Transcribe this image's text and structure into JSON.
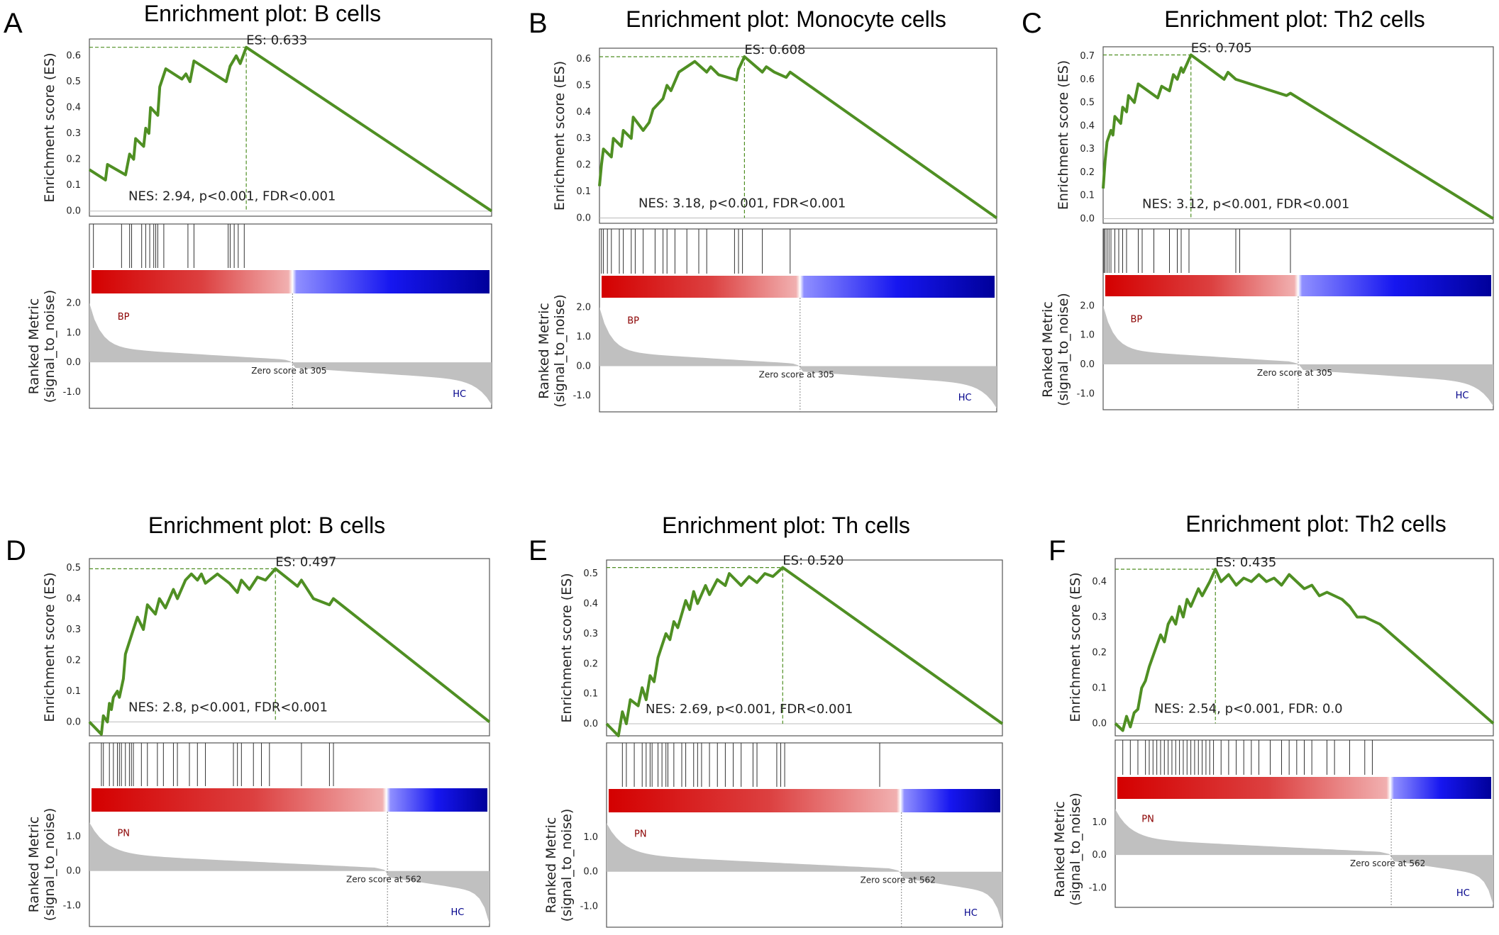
{
  "colors": {
    "es_line": "#4f8f23",
    "metric_fill": "#c0c0c0",
    "frame": "#555555",
    "hit": "#333333",
    "red": "#d40000",
    "blue": "#0000cc"
  },
  "chart_data": [
    {
      "panel": "A",
      "type": "line",
      "title": "Enrichment plot: B cells",
      "ylabel_es": "Enrichment score (ES)",
      "ylabel_rank": [
        "Ranked Metric",
        "(signal_to_noise)"
      ],
      "es_ticks": [
        0.0,
        0.1,
        0.2,
        0.3,
        0.4,
        0.5,
        0.6
      ],
      "es_ylim": [
        -0.02,
        0.665
      ],
      "rank_ticks": [
        2.0,
        1.0,
        0.0,
        -1.0
      ],
      "rank_ylim": [
        -1.55,
        2.25
      ],
      "es_value": 0.633,
      "es_label": "ES: 0.633",
      "peak_frac": 0.39,
      "nes_label": "NES: 2.94, p<0.001, FDR<0.001",
      "zero_frac": 0.505,
      "zero_label": "Zero score at 305",
      "pos_label": "BP",
      "neg_label": "HC",
      "rank_top": 2.0,
      "rank_bottom": -1.5,
      "es_curve": [
        [
          0,
          0.16
        ],
        [
          0.04,
          0.12
        ],
        [
          0.045,
          0.18
        ],
        [
          0.09,
          0.14
        ],
        [
          0.1,
          0.22
        ],
        [
          0.11,
          0.2
        ],
        [
          0.115,
          0.28
        ],
        [
          0.135,
          0.25
        ],
        [
          0.14,
          0.32
        ],
        [
          0.148,
          0.3
        ],
        [
          0.152,
          0.4
        ],
        [
          0.17,
          0.37
        ],
        [
          0.175,
          0.48
        ],
        [
          0.19,
          0.55
        ],
        [
          0.23,
          0.51
        ],
        [
          0.24,
          0.53
        ],
        [
          0.25,
          0.5
        ],
        [
          0.26,
          0.58
        ],
        [
          0.34,
          0.5
        ],
        [
          0.35,
          0.56
        ],
        [
          0.365,
          0.6
        ],
        [
          0.375,
          0.57
        ],
        [
          0.39,
          0.633
        ],
        [
          1,
          0.0
        ]
      ],
      "hits": [
        0.01,
        0.08,
        0.1,
        0.105,
        0.13,
        0.14,
        0.15,
        0.16,
        0.165,
        0.17,
        0.185,
        0.245,
        0.26,
        0.345,
        0.35,
        0.36,
        0.37,
        0.385
      ]
    },
    {
      "panel": "B",
      "type": "line",
      "title": "Enrichment plot: Monocyte cells",
      "ylabel_es": "Enrichment score (ES)",
      "ylabel_rank": [
        "Ranked Metric",
        "(signal_to_noise)"
      ],
      "es_ticks": [
        0.0,
        0.1,
        0.2,
        0.3,
        0.4,
        0.5,
        0.6
      ],
      "es_ylim": [
        -0.02,
        0.64
      ],
      "rank_ticks": [
        2.0,
        1.0,
        0.0,
        -1.0
      ],
      "rank_ylim": [
        -1.55,
        2.25
      ],
      "es_value": 0.608,
      "es_label": "ES: 0.608",
      "peak_frac": 0.365,
      "nes_label": "NES: 3.18, p<0.001, FDR<0.001",
      "zero_frac": 0.505,
      "zero_label": "Zero score at 305",
      "pos_label": "BP",
      "neg_label": "HC",
      "rank_top": 2.0,
      "rank_bottom": -1.5,
      "es_curve": [
        [
          0,
          0.12
        ],
        [
          0.005,
          0.2
        ],
        [
          0.01,
          0.26
        ],
        [
          0.03,
          0.23
        ],
        [
          0.035,
          0.3
        ],
        [
          0.055,
          0.27
        ],
        [
          0.06,
          0.33
        ],
        [
          0.08,
          0.3
        ],
        [
          0.085,
          0.38
        ],
        [
          0.11,
          0.33
        ],
        [
          0.125,
          0.36
        ],
        [
          0.135,
          0.41
        ],
        [
          0.16,
          0.45
        ],
        [
          0.17,
          0.5
        ],
        [
          0.18,
          0.48
        ],
        [
          0.2,
          0.55
        ],
        [
          0.24,
          0.59
        ],
        [
          0.27,
          0.55
        ],
        [
          0.28,
          0.57
        ],
        [
          0.3,
          0.54
        ],
        [
          0.345,
          0.52
        ],
        [
          0.35,
          0.56
        ],
        [
          0.365,
          0.608
        ],
        [
          0.41,
          0.55
        ],
        [
          0.42,
          0.57
        ],
        [
          0.44,
          0.55
        ],
        [
          0.47,
          0.53
        ],
        [
          0.48,
          0.55
        ],
        [
          1,
          0.0
        ]
      ],
      "hits": [
        0.005,
        0.01,
        0.02,
        0.03,
        0.05,
        0.06,
        0.08,
        0.09,
        0.11,
        0.14,
        0.16,
        0.17,
        0.19,
        0.22,
        0.25,
        0.27,
        0.34,
        0.35,
        0.36,
        0.41,
        0.48
      ]
    },
    {
      "panel": "C",
      "type": "line",
      "title": "Enrichment plot: Th2 cells",
      "ylabel_es": "Enrichment score (ES)",
      "ylabel_rank": [
        "Ranked Metric",
        "(signal_to_noise)"
      ],
      "es_ticks": [
        0.0,
        0.1,
        0.2,
        0.3,
        0.4,
        0.5,
        0.6,
        0.7
      ],
      "es_ylim": [
        -0.02,
        0.74
      ],
      "rank_ticks": [
        2.0,
        1.0,
        0.0,
        -1.0
      ],
      "rank_ylim": [
        -1.55,
        2.25
      ],
      "es_value": 0.705,
      "es_label": "ES: 0.705",
      "peak_frac": 0.225,
      "nes_label": "NES: 3.12, p<0.001, FDR<0.001",
      "zero_frac": 0.5,
      "zero_label": "Zero score at 305",
      "pos_label": "BP",
      "neg_label": "HC",
      "rank_top": 2.0,
      "rank_bottom": -1.5,
      "es_curve": [
        [
          0,
          0.13
        ],
        [
          0.005,
          0.25
        ],
        [
          0.01,
          0.33
        ],
        [
          0.02,
          0.38
        ],
        [
          0.025,
          0.36
        ],
        [
          0.03,
          0.44
        ],
        [
          0.045,
          0.41
        ],
        [
          0.05,
          0.48
        ],
        [
          0.06,
          0.46
        ],
        [
          0.065,
          0.53
        ],
        [
          0.08,
          0.5
        ],
        [
          0.09,
          0.58
        ],
        [
          0.14,
          0.52
        ],
        [
          0.15,
          0.57
        ],
        [
          0.17,
          0.55
        ],
        [
          0.18,
          0.62
        ],
        [
          0.19,
          0.6
        ],
        [
          0.2,
          0.65
        ],
        [
          0.205,
          0.63
        ],
        [
          0.225,
          0.705
        ],
        [
          0.31,
          0.6
        ],
        [
          0.32,
          0.63
        ],
        [
          0.34,
          0.6
        ],
        [
          0.47,
          0.53
        ],
        [
          0.48,
          0.54
        ],
        [
          1,
          0.0
        ]
      ],
      "hits": [
        0.002,
        0.005,
        0.01,
        0.015,
        0.02,
        0.03,
        0.04,
        0.05,
        0.06,
        0.09,
        0.1,
        0.13,
        0.17,
        0.19,
        0.2,
        0.22,
        0.34,
        0.35,
        0.48
      ]
    },
    {
      "panel": "D",
      "type": "line",
      "title": "Enrichment plot: B cells",
      "ylabel_es": "Enrichment score (ES)",
      "ylabel_rank": [
        "Ranked Metric",
        "(signal_to_noise)"
      ],
      "es_ticks": [
        0.0,
        0.1,
        0.2,
        0.3,
        0.4,
        0.5
      ],
      "es_ylim": [
        -0.045,
        0.53
      ],
      "rank_ticks": [
        1.0,
        0.0,
        -1.0
      ],
      "rank_ylim": [
        -1.6,
        1.65
      ],
      "es_value": 0.497,
      "es_label": "ES: 0.497",
      "peak_frac": 0.465,
      "nes_label": "NES: 2.8, p<0.001, FDR<0.001",
      "zero_frac": 0.745,
      "zero_label": "Zero score at 562",
      "pos_label": "PN",
      "neg_label": "HC",
      "rank_top": 1.4,
      "rank_bottom": -1.6,
      "es_curve": [
        [
          0,
          0.0
        ],
        [
          0.03,
          -0.04
        ],
        [
          0.035,
          0.02
        ],
        [
          0.045,
          0.0
        ],
        [
          0.05,
          0.06
        ],
        [
          0.055,
          0.04
        ],
        [
          0.06,
          0.08
        ],
        [
          0.07,
          0.1
        ],
        [
          0.075,
          0.08
        ],
        [
          0.085,
          0.14
        ],
        [
          0.09,
          0.22
        ],
        [
          0.1,
          0.26
        ],
        [
          0.11,
          0.3
        ],
        [
          0.12,
          0.34
        ],
        [
          0.135,
          0.3
        ],
        [
          0.145,
          0.38
        ],
        [
          0.165,
          0.35
        ],
        [
          0.175,
          0.4
        ],
        [
          0.19,
          0.37
        ],
        [
          0.21,
          0.43
        ],
        [
          0.22,
          0.4
        ],
        [
          0.24,
          0.46
        ],
        [
          0.255,
          0.48
        ],
        [
          0.27,
          0.46
        ],
        [
          0.28,
          0.48
        ],
        [
          0.29,
          0.45
        ],
        [
          0.32,
          0.48
        ],
        [
          0.35,
          0.45
        ],
        [
          0.37,
          0.42
        ],
        [
          0.38,
          0.46
        ],
        [
          0.4,
          0.43
        ],
        [
          0.42,
          0.47
        ],
        [
          0.44,
          0.46
        ],
        [
          0.465,
          0.497
        ],
        [
          0.52,
          0.44
        ],
        [
          0.53,
          0.46
        ],
        [
          0.56,
          0.4
        ],
        [
          0.6,
          0.38
        ],
        [
          0.61,
          0.4
        ],
        [
          1,
          0.0
        ]
      ],
      "hits": [
        0.03,
        0.035,
        0.05,
        0.06,
        0.07,
        0.075,
        0.08,
        0.09,
        0.1,
        0.105,
        0.11,
        0.13,
        0.145,
        0.17,
        0.185,
        0.21,
        0.22,
        0.25,
        0.27,
        0.29,
        0.36,
        0.37,
        0.38,
        0.41,
        0.43,
        0.45,
        0.53,
        0.6,
        0.61
      ]
    },
    {
      "panel": "E",
      "type": "line",
      "title": "Enrichment plot: Th cells",
      "ylabel_es": "Enrichment score (ES)",
      "ylabel_rank": [
        "Ranked Metric",
        "(signal_to_noise)"
      ],
      "es_ticks": [
        0.0,
        0.1,
        0.2,
        0.3,
        0.4,
        0.5
      ],
      "es_ylim": [
        -0.04,
        0.545
      ],
      "rank_ticks": [
        1.0,
        0.0,
        -1.0
      ],
      "rank_ylim": [
        -1.6,
        1.65
      ],
      "es_value": 0.52,
      "es_label": "ES: 0.520",
      "peak_frac": 0.445,
      "nes_label": "NES: 2.69, p<0.001, FDR<0.001",
      "zero_frac": 0.745,
      "zero_label": "Zero score at 562",
      "pos_label": "PN",
      "neg_label": "HC",
      "rank_top": 1.4,
      "rank_bottom": -1.6,
      "es_curve": [
        [
          0,
          0.0
        ],
        [
          0.03,
          -0.04
        ],
        [
          0.04,
          0.04
        ],
        [
          0.05,
          0.0
        ],
        [
          0.06,
          0.08
        ],
        [
          0.08,
          0.06
        ],
        [
          0.09,
          0.12
        ],
        [
          0.1,
          0.08
        ],
        [
          0.11,
          0.16
        ],
        [
          0.12,
          0.14
        ],
        [
          0.13,
          0.22
        ],
        [
          0.14,
          0.26
        ],
        [
          0.15,
          0.3
        ],
        [
          0.16,
          0.28
        ],
        [
          0.17,
          0.34
        ],
        [
          0.18,
          0.32
        ],
        [
          0.2,
          0.41
        ],
        [
          0.21,
          0.38
        ],
        [
          0.22,
          0.44
        ],
        [
          0.23,
          0.4
        ],
        [
          0.25,
          0.46
        ],
        [
          0.26,
          0.43
        ],
        [
          0.28,
          0.48
        ],
        [
          0.3,
          0.46
        ],
        [
          0.31,
          0.5
        ],
        [
          0.34,
          0.46
        ],
        [
          0.36,
          0.49
        ],
        [
          0.38,
          0.47
        ],
        [
          0.4,
          0.5
        ],
        [
          0.42,
          0.49
        ],
        [
          0.445,
          0.52
        ],
        [
          1,
          0.0
        ]
      ],
      "hits": [
        0.04,
        0.05,
        0.07,
        0.09,
        0.1,
        0.11,
        0.115,
        0.13,
        0.14,
        0.15,
        0.155,
        0.17,
        0.19,
        0.2,
        0.22,
        0.23,
        0.24,
        0.26,
        0.28,
        0.3,
        0.32,
        0.34,
        0.37,
        0.38,
        0.43,
        0.44,
        0.45,
        0.69
      ]
    },
    {
      "panel": "F",
      "type": "line",
      "title": "Enrichment plot: Th2 cells",
      "ylabel_es": "Enrichment score (ES)",
      "ylabel_rank": [
        "Ranked Metric",
        "(signal_to_noise)"
      ],
      "es_ticks": [
        0.0,
        0.1,
        0.2,
        0.3,
        0.4
      ],
      "es_ylim": [
        -0.035,
        0.465
      ],
      "rank_ticks": [
        1.0,
        0.0,
        -1.0
      ],
      "rank_ylim": [
        -1.6,
        1.65
      ],
      "es_value": 0.435,
      "es_label": "ES: 0.435",
      "peak_frac": 0.265,
      "nes_label": "NES: 2.54, p<0.001, FDR: 0.0",
      "zero_frac": 0.73,
      "zero_label": "Zero score at 562",
      "pos_label": "PN",
      "neg_label": "HC",
      "rank_top": 1.4,
      "rank_bottom": -1.6,
      "es_curve": [
        [
          0,
          0.0
        ],
        [
          0.02,
          -0.02
        ],
        [
          0.03,
          0.02
        ],
        [
          0.04,
          -0.01
        ],
        [
          0.05,
          0.03
        ],
        [
          0.06,
          0.04
        ],
        [
          0.07,
          0.1
        ],
        [
          0.08,
          0.12
        ],
        [
          0.09,
          0.16
        ],
        [
          0.1,
          0.19
        ],
        [
          0.11,
          0.22
        ],
        [
          0.12,
          0.25
        ],
        [
          0.13,
          0.23
        ],
        [
          0.14,
          0.28
        ],
        [
          0.15,
          0.3
        ],
        [
          0.16,
          0.28
        ],
        [
          0.17,
          0.33
        ],
        [
          0.18,
          0.3
        ],
        [
          0.19,
          0.35
        ],
        [
          0.2,
          0.33
        ],
        [
          0.22,
          0.38
        ],
        [
          0.23,
          0.36
        ],
        [
          0.25,
          0.4
        ],
        [
          0.265,
          0.435
        ],
        [
          0.28,
          0.4
        ],
        [
          0.3,
          0.42
        ],
        [
          0.32,
          0.39
        ],
        [
          0.34,
          0.41
        ],
        [
          0.36,
          0.4
        ],
        [
          0.38,
          0.42
        ],
        [
          0.4,
          0.4
        ],
        [
          0.42,
          0.41
        ],
        [
          0.44,
          0.39
        ],
        [
          0.46,
          0.42
        ],
        [
          0.48,
          0.4
        ],
        [
          0.5,
          0.38
        ],
        [
          0.52,
          0.39
        ],
        [
          0.54,
          0.36
        ],
        [
          0.56,
          0.37
        ],
        [
          0.6,
          0.35
        ],
        [
          0.62,
          0.33
        ],
        [
          0.64,
          0.3
        ],
        [
          0.66,
          0.3
        ],
        [
          0.7,
          0.28
        ],
        [
          1,
          0.0
        ]
      ],
      "hits": [
        0.02,
        0.04,
        0.06,
        0.08,
        0.09,
        0.1,
        0.11,
        0.12,
        0.13,
        0.14,
        0.15,
        0.16,
        0.17,
        0.18,
        0.19,
        0.2,
        0.21,
        0.22,
        0.23,
        0.24,
        0.25,
        0.26,
        0.28,
        0.3,
        0.32,
        0.34,
        0.36,
        0.38,
        0.41,
        0.44,
        0.46,
        0.48,
        0.5,
        0.52,
        0.56,
        0.58,
        0.62,
        0.66,
        0.68
      ]
    }
  ]
}
